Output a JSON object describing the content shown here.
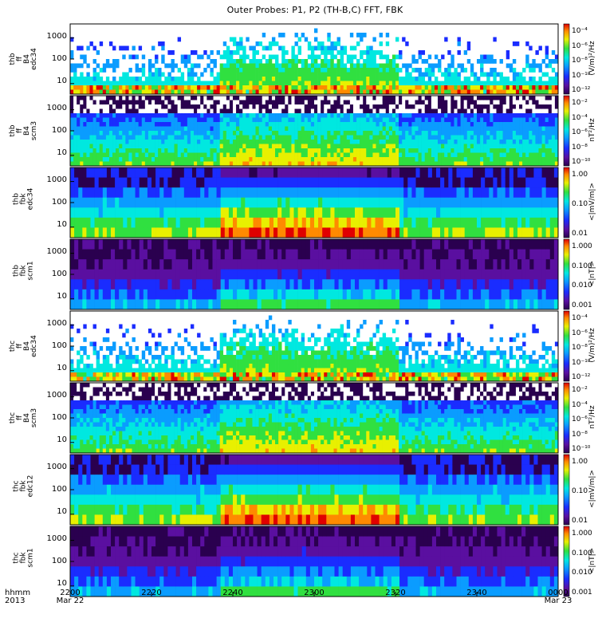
{
  "title": "Outer Probes: P1, P2 (TH-B,C) FFT, FBK",
  "x_axis": {
    "label_row1": "hhmm",
    "label_row2": "2013",
    "ticks": [
      "2200",
      "2220",
      "2240",
      "2300",
      "2320",
      "2340",
      "0000"
    ],
    "dates": {
      "first": "Mar 22",
      "last": "Mar 23"
    }
  },
  "panels": [
    {
      "id": "thb-ff-b4-edc34",
      "ylabel": [
        "thb",
        "ff",
        "B4",
        "edc34"
      ],
      "yticks": [
        "1000",
        "100",
        "10"
      ],
      "colorbar": {
        "unit": "(V/m)²/Hz",
        "ticks": [
          "10⁻⁴",
          "10⁻⁶",
          "10⁻⁸",
          "10⁻¹⁰",
          "10⁻¹²"
        ]
      }
    },
    {
      "id": "thb-ff-b4-scm3",
      "ylabel": [
        "thb",
        "ff",
        "B4",
        "scm3"
      ],
      "yticks": [
        "1000",
        "100",
        "10"
      ],
      "colorbar": {
        "unit": "nT²/Hz",
        "ticks": [
          "10⁻²",
          "10⁻⁴",
          "10⁻⁶",
          "10⁻⁸",
          "10⁻¹⁰"
        ]
      }
    },
    {
      "id": "thb-fbk-edc34",
      "ylabel": [
        "thb",
        "fbk",
        "edc34"
      ],
      "yticks": [
        "1000",
        "100",
        "10"
      ],
      "colorbar": {
        "unit": "<|mV/m|>",
        "ticks": [
          "1.00",
          "0.10",
          "0.01"
        ]
      }
    },
    {
      "id": "thb-fbk-scm1",
      "ylabel": [
        "thb",
        "fbk",
        "scm1"
      ],
      "yticks": [
        "1000",
        "100",
        "10"
      ],
      "colorbar": {
        "unit": "<|nT|>",
        "ticks": [
          "1.000",
          "0.100",
          "0.010",
          "0.001"
        ]
      }
    },
    {
      "id": "thc-ff-b4-edc34",
      "ylabel": [
        "thc",
        "ff",
        "B4",
        "edc34"
      ],
      "yticks": [
        "1000",
        "100",
        "10"
      ],
      "colorbar": {
        "unit": "(V/m)²/Hz",
        "ticks": [
          "10⁻⁴",
          "10⁻⁶",
          "10⁻⁸",
          "10⁻¹⁰",
          "10⁻¹²"
        ]
      }
    },
    {
      "id": "thc-ff-b4-scm3",
      "ylabel": [
        "thc",
        "ff",
        "B4",
        "scm3"
      ],
      "yticks": [
        "1000",
        "100",
        "10"
      ],
      "colorbar": {
        "unit": "nT²/Hz",
        "ticks": [
          "10⁻²",
          "10⁻⁴",
          "10⁻⁶",
          "10⁻⁸",
          "10⁻¹⁰"
        ]
      }
    },
    {
      "id": "thc-fbk-edc12",
      "ylabel": [
        "thc",
        "fbk",
        "edc12"
      ],
      "yticks": [
        "1000",
        "100",
        "10"
      ],
      "colorbar": {
        "unit": "<|mV/m|>",
        "ticks": [
          "1.00",
          "0.10",
          "0.01"
        ]
      }
    },
    {
      "id": "thc-fbk-scm1",
      "ylabel": [
        "thc",
        "fbk",
        "scm1"
      ],
      "yticks": [
        "1000",
        "100",
        "10"
      ],
      "colorbar": {
        "unit": "<|nT|>",
        "ticks": [
          "1.000",
          "0.100",
          "0.010",
          "0.001"
        ]
      }
    }
  ],
  "chart_data": {
    "type": "heatmap",
    "title": "Outer Probes: P1, P2 (TH-B,C) FFT, FBK",
    "x_axis_ticks": [
      "2200",
      "2220",
      "2240",
      "2300",
      "2320",
      "2340",
      "0000"
    ],
    "y_scale": "log",
    "colormap": "rainbow (purple-blue-cyan-green-yellow-red)",
    "panel_count": 8
  }
}
